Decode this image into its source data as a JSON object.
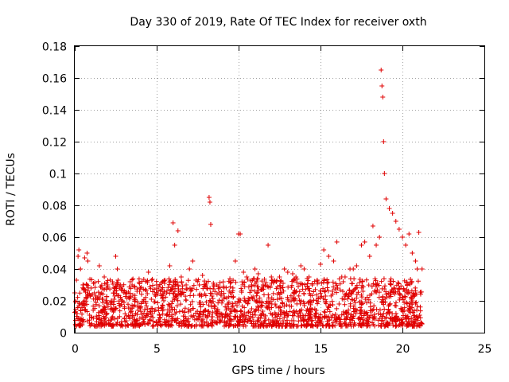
{
  "chart_data": {
    "type": "scatter",
    "title": "Day 330 of 2019, Rate Of TEC Index for receiver oxth",
    "xlabel": "GPS time / hours",
    "ylabel": "ROTI / TECUs",
    "xlim": [
      0,
      25
    ],
    "ylim": [
      0,
      0.18
    ],
    "xticks": [
      "0",
      "5",
      "10",
      "15",
      "20",
      "25"
    ],
    "yticks": [
      "0",
      "0.02",
      "0.04",
      "0.06",
      "0.08",
      "0.1",
      "0.12",
      "0.14",
      "0.16",
      "0.18"
    ],
    "grid": true,
    "marker": "plus",
    "color": "#e00000",
    "series": [
      {
        "x": [
          0.0,
          0.1,
          0.2,
          0.25,
          0.35,
          0.5,
          0.6,
          0.75,
          0.8,
          1.0,
          1.2,
          1.5,
          1.8,
          2.0,
          2.3,
          2.5,
          2.6,
          2.8,
          3.0,
          3.3,
          3.5,
          3.8,
          4.0,
          4.3,
          4.5,
          4.7,
          5.0,
          5.3,
          5.5,
          5.8,
          6.0,
          6.1,
          6.3,
          6.5,
          6.8,
          7.0,
          7.2,
          7.4,
          7.6,
          7.8,
          8.0,
          8.2,
          8.25,
          8.3,
          8.5,
          8.8,
          9.0,
          9.3,
          9.5,
          9.8,
          10.0,
          10.1,
          10.3,
          10.5,
          10.8,
          11.0,
          11.2,
          11.5,
          11.8,
          12.0,
          12.3,
          12.5,
          12.8,
          13.0,
          13.3,
          13.5,
          13.8,
          14.0,
          14.3,
          14.5,
          14.8,
          15.0,
          15.2,
          15.5,
          15.8,
          16.0,
          16.3,
          16.5,
          16.8,
          17.0,
          17.2,
          17.5,
          17.7,
          18.0,
          18.2,
          18.4,
          18.6,
          18.7,
          18.75,
          18.8,
          18.85,
          18.9,
          19.0,
          19.2,
          19.4,
          19.6,
          19.8,
          20.0,
          20.2,
          20.4,
          20.6,
          20.8,
          20.9,
          21.0,
          21.2
        ],
        "y": [
          0.025,
          0.033,
          0.048,
          0.052,
          0.04,
          0.03,
          0.047,
          0.05,
          0.045,
          0.028,
          0.025,
          0.042,
          0.035,
          0.03,
          0.032,
          0.048,
          0.04,
          0.03,
          0.025,
          0.022,
          0.03,
          0.026,
          0.028,
          0.027,
          0.038,
          0.033,
          0.03,
          0.027,
          0.033,
          0.042,
          0.069,
          0.055,
          0.064,
          0.035,
          0.03,
          0.04,
          0.045,
          0.033,
          0.03,
          0.036,
          0.03,
          0.085,
          0.082,
          0.068,
          0.03,
          0.025,
          0.02,
          0.018,
          0.025,
          0.045,
          0.062,
          0.062,
          0.038,
          0.035,
          0.03,
          0.04,
          0.037,
          0.03,
          0.055,
          0.035,
          0.032,
          0.035,
          0.04,
          0.038,
          0.037,
          0.035,
          0.042,
          0.04,
          0.035,
          0.03,
          0.033,
          0.043,
          0.052,
          0.048,
          0.045,
          0.057,
          0.035,
          0.035,
          0.04,
          0.04,
          0.042,
          0.055,
          0.057,
          0.048,
          0.067,
          0.055,
          0.06,
          0.165,
          0.155,
          0.148,
          0.12,
          0.1,
          0.084,
          0.078,
          0.075,
          0.07,
          0.065,
          0.06,
          0.055,
          0.062,
          0.05,
          0.045,
          0.04,
          0.063,
          0.04
        ]
      }
    ]
  }
}
